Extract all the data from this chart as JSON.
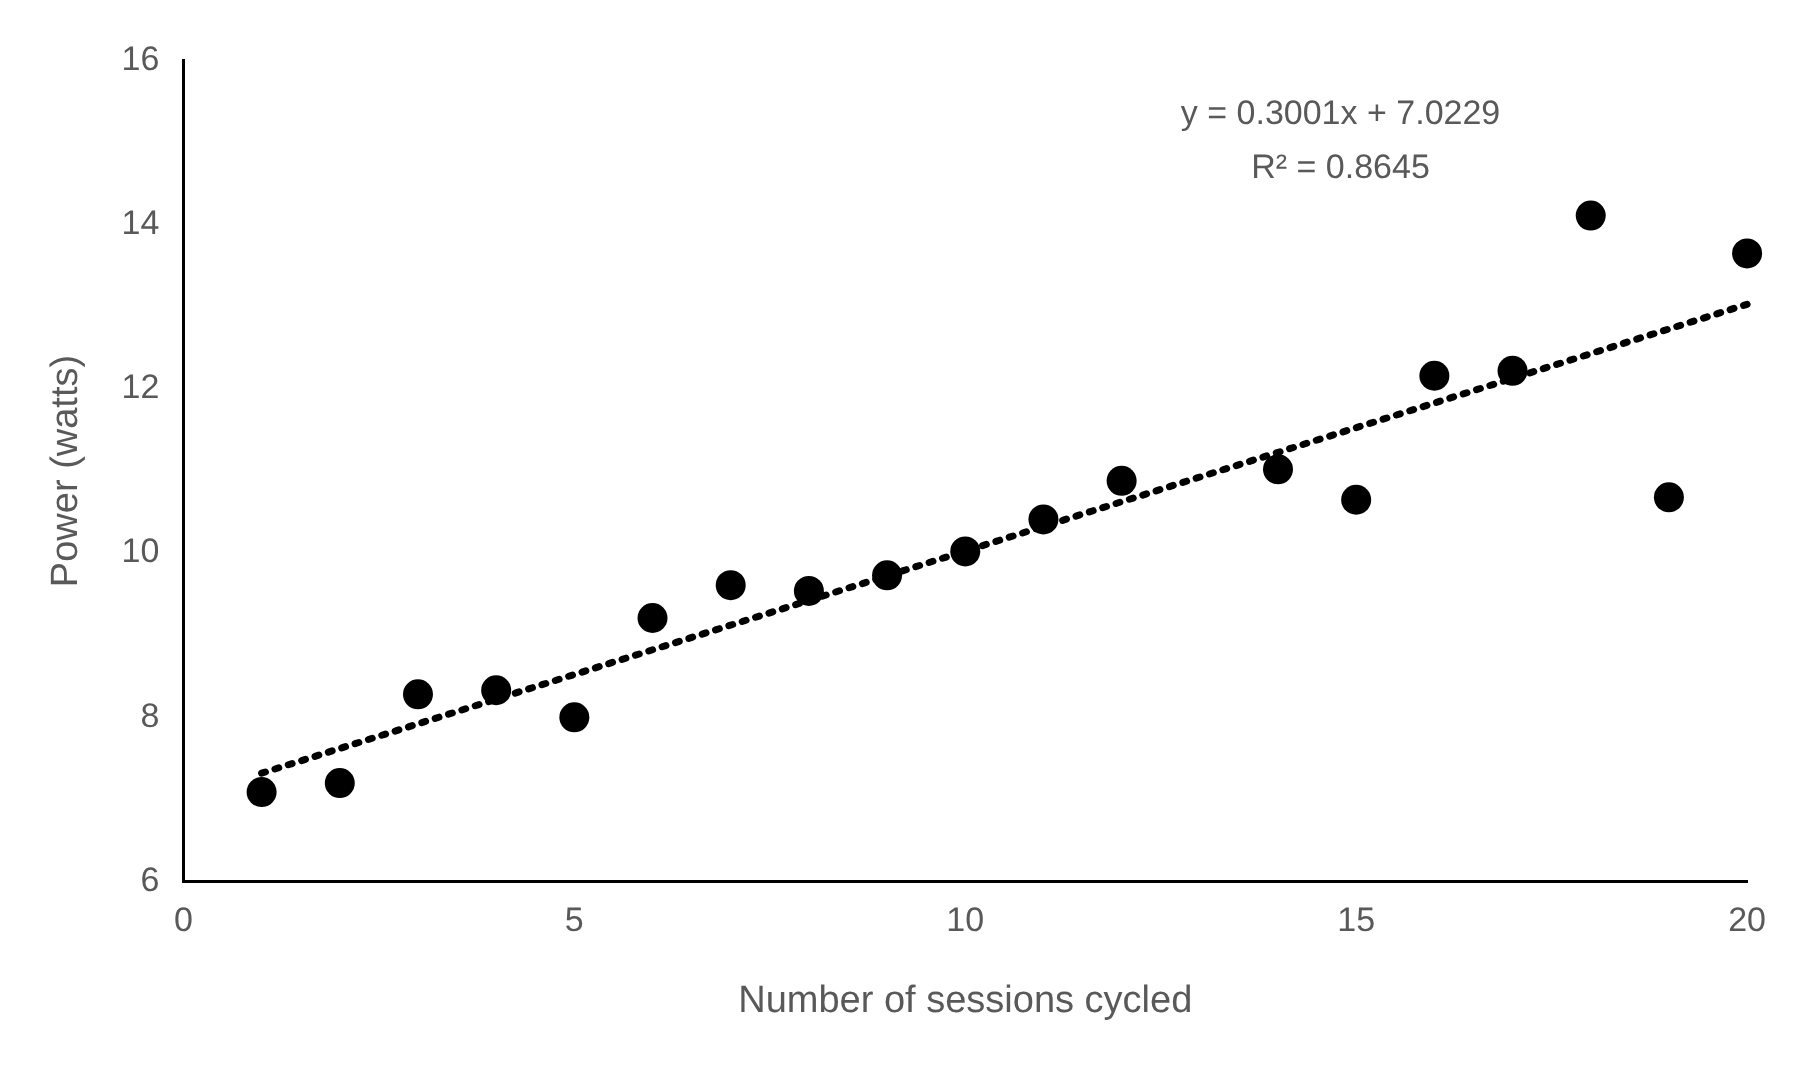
{
  "chart_data": {
    "type": "scatter",
    "xlabel": "Number of sessions cycled",
    "ylabel": "Power (watts)",
    "x": [
      1,
      2,
      3,
      4,
      5,
      6,
      7,
      8,
      9,
      10,
      11,
      12,
      14,
      15,
      16,
      17,
      18,
      19,
      20
    ],
    "series": [
      {
        "color": "#000000",
        "marker": "circle",
        "values": [
          7.09,
          7.2,
          8.28,
          8.33,
          8.0,
          9.21,
          9.61,
          9.54,
          9.73,
          10.02,
          10.41,
          10.88,
          11.02,
          10.65,
          12.16,
          12.22,
          14.11,
          10.68,
          13.65
        ]
      },
      {
        "type": "line",
        "color": "#000000",
        "line_style": "dotted",
        "marker": "none",
        "x": [
          1,
          20
        ],
        "values": [
          7.32,
          13.03
        ]
      }
    ],
    "annotations": [
      "y = 0.3001x + 7.0229",
      "R² = 0.8645"
    ],
    "xlim": [
      0,
      20
    ],
    "xticks": [
      0,
      5,
      10,
      15,
      20
    ],
    "ylim": [
      6,
      16
    ],
    "yticks": [
      6,
      8,
      10,
      12,
      14,
      16
    ],
    "grid": false,
    "legend": false
  }
}
